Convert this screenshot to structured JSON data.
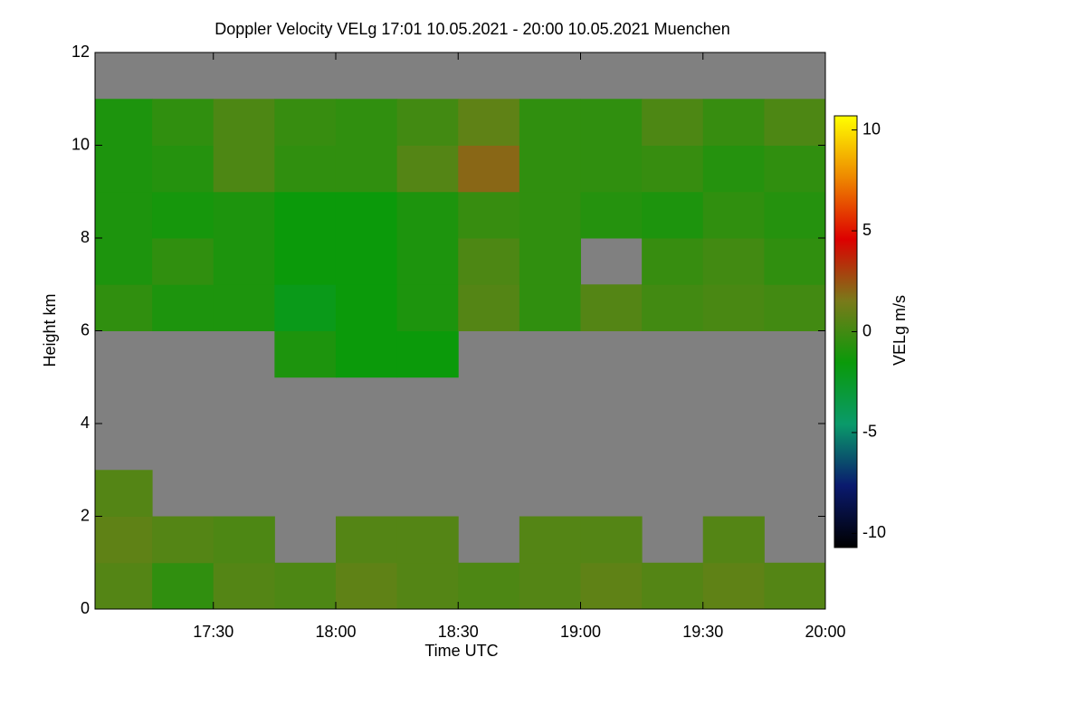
{
  "chart_data": {
    "type": "heatmap",
    "title": "Doppler Velocity VELg   17:01 10.05.2021 - 20:00 10.05.2021 Muenchen",
    "x_label": "Time UTC",
    "y_label": "Height km",
    "colorbar_label": "VELg m/s",
    "xlim": [
      1021,
      1200
    ],
    "xticks": [
      {
        "value": 1050,
        "label": "17:30"
      },
      {
        "value": 1080,
        "label": "18:00"
      },
      {
        "value": 1110,
        "label": "18:30"
      },
      {
        "value": 1140,
        "label": "19:00"
      },
      {
        "value": 1170,
        "label": "19:30"
      },
      {
        "value": 1200,
        "label": "20:00"
      }
    ],
    "ylim": [
      0,
      12
    ],
    "yticks": [
      0,
      2,
      4,
      6,
      8,
      10,
      12
    ],
    "x_bins": [
      1021,
      1035,
      1050,
      1065,
      1080,
      1095,
      1110,
      1125,
      1140,
      1155,
      1170,
      1185,
      1200
    ],
    "y_bins": [
      0,
      1,
      2,
      3,
      4,
      5,
      6,
      7,
      8,
      9,
      10,
      11,
      12
    ],
    "values": [
      [
        0.5,
        -0.5,
        0.5,
        0.3,
        0.8,
        0.5,
        0.3,
        0.5,
        0.8,
        0.5,
        0.8,
        0.5
      ],
      [
        0.8,
        0.5,
        0.3,
        null,
        0.5,
        0.5,
        null,
        0.5,
        0.5,
        null,
        0.5,
        null
      ],
      [
        0.5,
        null,
        null,
        null,
        null,
        null,
        null,
        null,
        null,
        null,
        null,
        null
      ],
      [
        null,
        null,
        null,
        null,
        null,
        null,
        null,
        null,
        null,
        null,
        null,
        null
      ],
      [
        null,
        null,
        null,
        null,
        null,
        null,
        null,
        null,
        null,
        null,
        null,
        null
      ],
      [
        null,
        null,
        null,
        -1,
        -1.5,
        -1.5,
        null,
        null,
        null,
        null,
        null,
        null
      ],
      [
        -0.5,
        -1,
        -1,
        -2,
        -1.5,
        -1,
        0.5,
        -0.5,
        0.5,
        0,
        0.2,
        0
      ],
      [
        -1,
        -0.5,
        -1,
        -1.5,
        -1.5,
        -1,
        0.3,
        -0.5,
        null,
        -0.3,
        0,
        -0.5
      ],
      [
        -1,
        -1.2,
        -1,
        -1.5,
        -1.5,
        -1,
        -0.3,
        -0.5,
        -0.8,
        -1,
        -0.5,
        -0.8
      ],
      [
        -1,
        -0.8,
        0.3,
        -0.5,
        -0.5,
        0.5,
        2,
        -0.5,
        -0.5,
        -0.3,
        -0.8,
        -0.5
      ],
      [
        -1,
        -0.5,
        0.3,
        -0.3,
        -0.5,
        0,
        0.8,
        -0.5,
        -0.5,
        0.3,
        -0.3,
        0.3
      ],
      [
        null,
        null,
        null,
        null,
        null,
        null,
        null,
        null,
        null,
        null,
        null,
        null
      ]
    ],
    "background": "#808080",
    "clim": [
      -10.7,
      10.7
    ],
    "cticks": [
      -10,
      -5,
      0,
      5,
      10
    ],
    "colormap": [
      "#000000",
      "#0a1a6e",
      "#0a9a6a",
      "#0a9a0a",
      "#7a7a1a",
      "#dd0000",
      "#ee8800",
      "#ffff00"
    ]
  }
}
